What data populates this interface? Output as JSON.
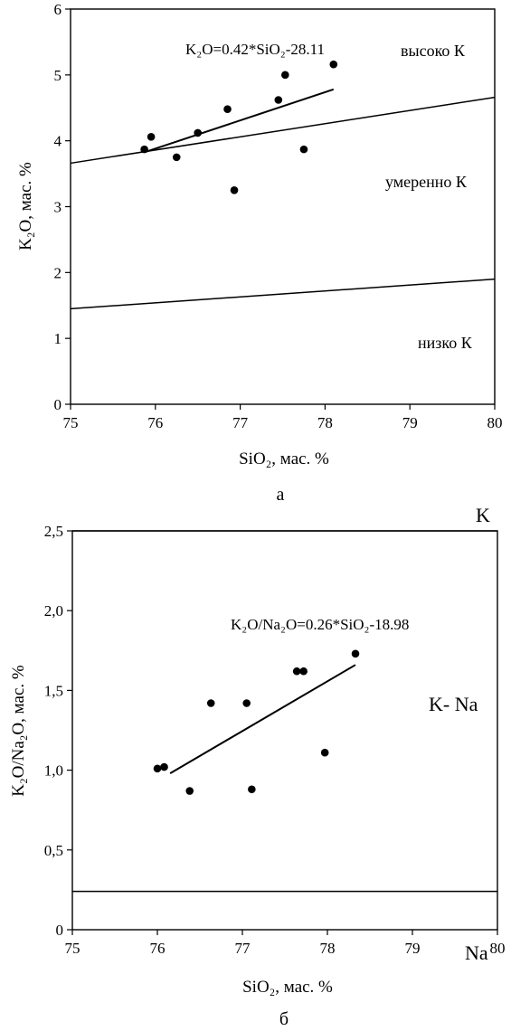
{
  "chart_data": [
    {
      "type": "scatter",
      "panel_label": "а",
      "xlabel": "SiO₂, мас. %",
      "ylabel": "K₂O, мас. %",
      "xlim": [
        75,
        80
      ],
      "ylim": [
        0,
        6
      ],
      "x_ticks": [
        "75",
        "76",
        "77",
        "78",
        "79",
        "80"
      ],
      "y_ticks": [
        "0",
        "1",
        "2",
        "3",
        "4",
        "5",
        "6"
      ],
      "points": [
        {
          "x": 75.87,
          "y": 3.87
        },
        {
          "x": 75.95,
          "y": 4.06
        },
        {
          "x": 76.25,
          "y": 3.75
        },
        {
          "x": 76.5,
          "y": 4.12
        },
        {
          "x": 76.85,
          "y": 4.48
        },
        {
          "x": 76.93,
          "y": 3.25
        },
        {
          "x": 77.45,
          "y": 4.62
        },
        {
          "x": 77.53,
          "y": 5.0
        },
        {
          "x": 77.75,
          "y": 3.87
        },
        {
          "x": 78.1,
          "y": 5.16
        }
      ],
      "regression": {
        "label": "K₂O=0.42*SiO₂-28.11",
        "x": [
          75.88,
          78.1
        ],
        "y": [
          3.83,
          4.78
        ]
      },
      "boundary_lines": [
        {
          "x": [
            75,
            80
          ],
          "y": [
            3.66,
            4.66
          ]
        },
        {
          "x": [
            75,
            80
          ],
          "y": [
            1.45,
            1.9
          ]
        }
      ],
      "region_labels": [
        "высоко К",
        "умеренно К",
        "низко К"
      ],
      "grid": false
    },
    {
      "type": "scatter",
      "panel_label": "б",
      "xlabel": "SiO₂, мас. %",
      "ylabel": "K₂O/Na₂O, мас. %",
      "xlim": [
        75,
        80
      ],
      "ylim": [
        0,
        2.5
      ],
      "x_ticks": [
        "75",
        "76",
        "77",
        "78",
        "79",
        "80"
      ],
      "y_ticks": [
        "0",
        "0,5",
        "1,0",
        "1,5",
        "2,0",
        "2,5"
      ],
      "points": [
        {
          "x": 76.0,
          "y": 1.01
        },
        {
          "x": 76.08,
          "y": 1.02
        },
        {
          "x": 76.38,
          "y": 0.87
        },
        {
          "x": 76.63,
          "y": 1.42
        },
        {
          "x": 77.05,
          "y": 1.42
        },
        {
          "x": 77.11,
          "y": 0.88
        },
        {
          "x": 77.64,
          "y": 1.62
        },
        {
          "x": 77.72,
          "y": 1.62
        },
        {
          "x": 77.97,
          "y": 1.11
        },
        {
          "x": 78.33,
          "y": 1.73
        }
      ],
      "regression": {
        "label": "K₂O/Na₂O=0.26*SiO₂-18.98",
        "x": [
          76.15,
          78.33
        ],
        "y": [
          0.98,
          1.66
        ]
      },
      "boundary_lines": [
        {
          "x": [
            75,
            80
          ],
          "y": [
            2.5,
            2.5
          ]
        },
        {
          "x": [
            75,
            80
          ],
          "y": [
            0.24,
            0.24
          ]
        }
      ],
      "region_labels": [
        "K",
        "K- Na",
        "Na"
      ],
      "grid": false
    }
  ]
}
